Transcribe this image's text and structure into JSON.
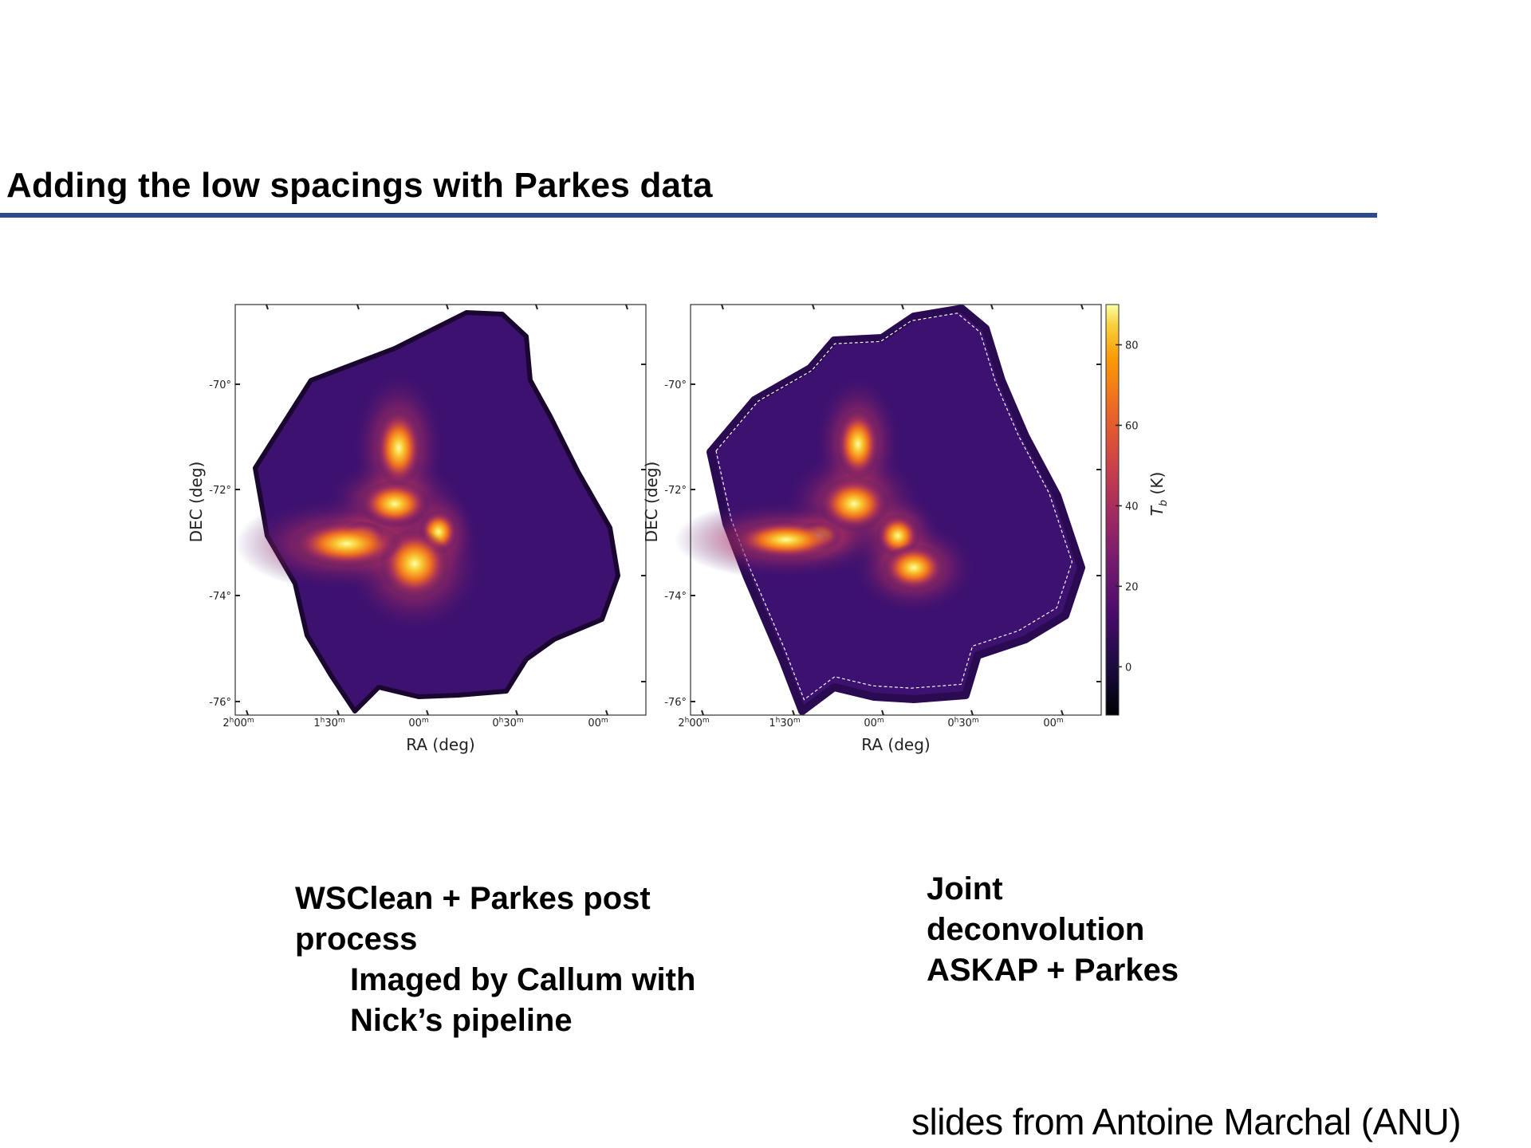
{
  "slide": {
    "title": "Adding the low spacings with Parkes data",
    "accent_color": "#2c4a8f",
    "credit": "slides from Antoine Marchal (ANU)"
  },
  "captions": {
    "left_main_1": "WSClean + Parkes post",
    "left_main_2": "process",
    "left_sub_1": "Imaged by Callum with",
    "left_sub_2": "Nick’s pipeline",
    "right_1": "Joint",
    "right_2": "deconvolution",
    "right_3": "ASKAP + Parkes"
  },
  "chart_data": {
    "type": "heatmap",
    "colormap": "inferno",
    "panels": [
      {
        "name": "left-panel",
        "xlabel": "RA (deg)",
        "ylabel": "DEC (deg)",
        "x_ticks": [
          "2h00m",
          "1h30m",
          "00m",
          "0h30m",
          "00m"
        ],
        "y_ticks": [
          "-70°",
          "-72°",
          "-74°",
          "-76°"
        ],
        "colorbar": false
      },
      {
        "name": "right-panel",
        "xlabel": "RA (deg)",
        "ylabel": "DEC (deg)",
        "x_ticks": [
          "2h00m",
          "1h30m",
          "00m",
          "0h30m",
          "00m"
        ],
        "y_ticks": [
          "-70°",
          "-72°",
          "-74°",
          "-76°"
        ],
        "colorbar": true,
        "colorbar_label": "T_b (K)",
        "colorbar_ticks": [
          0,
          20,
          40,
          60,
          80
        ],
        "colorbar_range": [
          -12,
          90
        ]
      }
    ]
  }
}
